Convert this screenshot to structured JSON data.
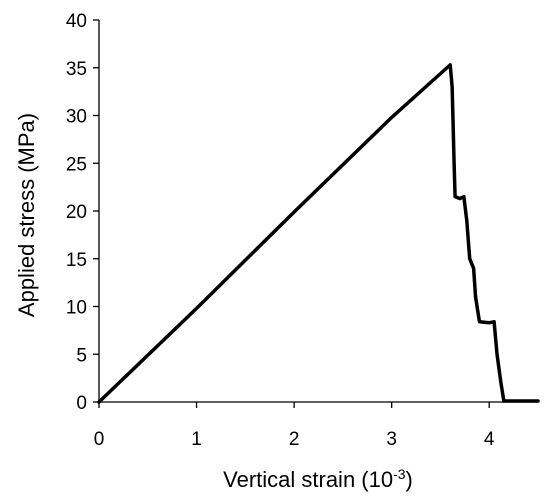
{
  "chart_data": {
    "type": "line",
    "title": "",
    "xlabel": "Vertical strain (10",
    "xlabel_sup": "-3",
    "xlabel_end": ")",
    "ylabel": "Applied stress (MPa)",
    "xlim": [
      0,
      4.5
    ],
    "ylim": [
      0,
      40
    ],
    "x_ticks": [
      0,
      1,
      2,
      3,
      4
    ],
    "y_ticks": [
      0,
      5,
      10,
      15,
      20,
      25,
      30,
      35,
      40
    ],
    "grid": false,
    "legend": "none",
    "series": [
      {
        "color": "#000000",
        "points": [
          [
            0.0,
            0.0
          ],
          [
            1.0,
            9.8
          ],
          [
            2.0,
            19.9
          ],
          [
            3.0,
            29.8
          ],
          [
            3.6,
            35.3
          ],
          [
            3.62,
            33.0
          ],
          [
            3.64,
            25.0
          ],
          [
            3.65,
            21.5
          ],
          [
            3.7,
            21.3
          ],
          [
            3.74,
            21.5
          ],
          [
            3.77,
            19.0
          ],
          [
            3.8,
            15.0
          ],
          [
            3.84,
            14.0
          ],
          [
            3.86,
            11.0
          ],
          [
            3.9,
            8.4
          ],
          [
            4.0,
            8.3
          ],
          [
            4.05,
            8.4
          ],
          [
            4.08,
            5.0
          ],
          [
            4.12,
            2.0
          ],
          [
            4.15,
            0.1
          ],
          [
            4.5,
            0.1
          ]
        ]
      }
    ]
  }
}
